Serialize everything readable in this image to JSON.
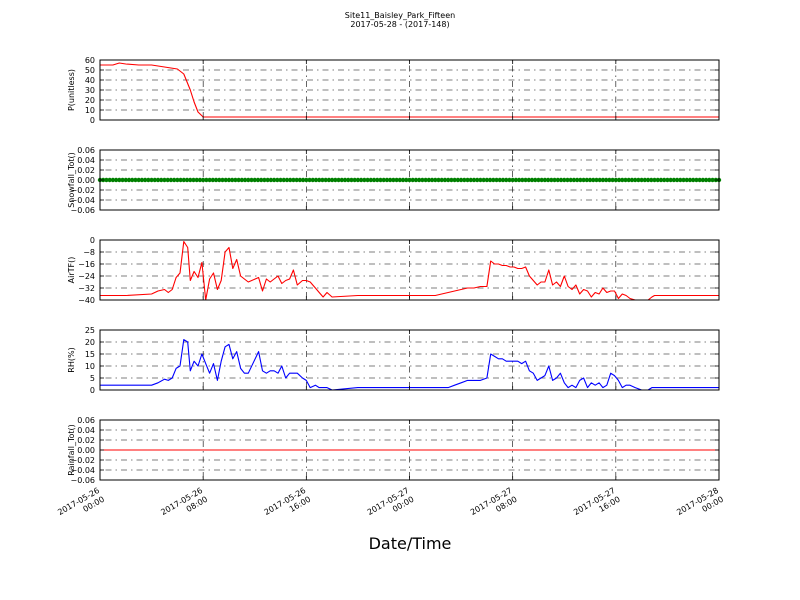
{
  "figure": {
    "title": "Site11_Baisley_Park_Fifteen",
    "subtitle": "2017-05-28 - (2017-148)",
    "xlabel": "Date/Time"
  },
  "x_ticks": [
    {
      "hours": 0,
      "line1": "2017-05-26",
      "line2": "00:00"
    },
    {
      "hours": 8,
      "line1": "2017-05-26",
      "line2": "08:00"
    },
    {
      "hours": 16,
      "line1": "2017-05-26",
      "line2": "16:00"
    },
    {
      "hours": 24,
      "line1": "2017-05-27",
      "line2": "00:00"
    },
    {
      "hours": 32,
      "line1": "2017-05-27",
      "line2": "08:00"
    },
    {
      "hours": 40,
      "line1": "2017-05-27",
      "line2": "16:00"
    },
    {
      "hours": 48,
      "line1": "2017-05-28",
      "line2": "00:00"
    }
  ],
  "colors": {
    "P": "#ff0000",
    "Snowfall": "#008000",
    "AirTF": "#ff0000",
    "RH": "#0000ff",
    "Rainfall": "#ff0000"
  },
  "chart_data": [
    {
      "type": "line",
      "ylabel": "P(unitless)",
      "ylim": [
        0,
        60
      ],
      "yticks": [
        0,
        10,
        20,
        30,
        40,
        50,
        60
      ],
      "xlim_hours": [
        0,
        48
      ],
      "grid": true,
      "x": [
        0,
        1,
        1.5,
        2,
        3,
        4,
        5,
        6,
        6.5,
        7,
        7.3,
        7.6,
        8,
        9,
        12,
        16,
        20,
        24,
        28,
        32,
        36,
        40,
        44,
        48
      ],
      "series": [
        {
          "values": [
            55,
            55,
            57,
            56,
            55,
            55,
            53,
            51,
            46,
            30,
            18,
            8,
            3,
            3,
            3,
            3,
            3,
            3,
            3,
            3,
            3,
            3,
            3,
            3
          ]
        }
      ]
    },
    {
      "type": "scatter",
      "ylabel": "Snowfall_Tot()",
      "ylim": [
        -0.06,
        0.06
      ],
      "yticks": [
        -0.06,
        -0.04,
        -0.02,
        0.0,
        0.02,
        0.04,
        0.06
      ],
      "xlim_hours": [
        0,
        48
      ],
      "grid": true,
      "x_start_hours": 0,
      "x_step_hours": 0.25,
      "series": [
        {
          "constant_value": 0,
          "count": 193
        }
      ]
    },
    {
      "type": "line",
      "ylabel": "AirTF()",
      "ylim": [
        -40,
        0
      ],
      "yticks": [
        -40,
        -32,
        -24,
        -16,
        -8,
        0
      ],
      "xlim_hours": [
        0,
        48
      ],
      "grid": true,
      "x": [
        0,
        2,
        4,
        4.5,
        5,
        5.3,
        5.6,
        5.9,
        6.2,
        6.5,
        6.8,
        7,
        7.3,
        7.6,
        7.9,
        8.2,
        8.5,
        8.8,
        9.1,
        9.4,
        9.7,
        10,
        10.3,
        10.6,
        10.9,
        11.2,
        11.5,
        12.3,
        12.6,
        12.9,
        13.2,
        13.5,
        13.8,
        14.1,
        14.4,
        14.7,
        15,
        15.3,
        15.7,
        16,
        16.3,
        16.7,
        17,
        17.3,
        17.6,
        18,
        20,
        22,
        24,
        26,
        26.5,
        27,
        27.5,
        28,
        28.5,
        29,
        29.5,
        30,
        30.3,
        30.6,
        30.9,
        31.2,
        31.5,
        31.8,
        32.1,
        32.4,
        32.7,
        33,
        33.3,
        33.6,
        33.9,
        34.2,
        34.5,
        34.8,
        35.1,
        35.4,
        35.7,
        36,
        36.3,
        36.6,
        36.9,
        37.2,
        37.5,
        37.8,
        38.1,
        38.4,
        38.7,
        39,
        39.3,
        39.6,
        39.9,
        40.2,
        40.5,
        40.8,
        41.1,
        41.5,
        42,
        42.5,
        42.8,
        43,
        45,
        48
      ],
      "series": [
        {
          "values": [
            -37,
            -37,
            -36,
            -34,
            -33,
            -35,
            -33,
            -25,
            -22,
            -1,
            -5,
            -27,
            -21,
            -25,
            -15,
            -40,
            -26,
            -22,
            -33,
            -27,
            -8,
            -5,
            -19,
            -13,
            -24,
            -26,
            -28,
            -25,
            -34,
            -26,
            -28,
            -26,
            -24,
            -29,
            -27,
            -26,
            -20,
            -30,
            -27,
            -27,
            -28,
            -32,
            -35,
            -38,
            -35,
            -38,
            -37,
            -37,
            -37,
            -37,
            -36,
            -35,
            -34,
            -33,
            -32,
            -32,
            -31,
            -31,
            -14,
            -16,
            -16,
            -17,
            -17,
            -18,
            -18,
            -19,
            -19,
            -18,
            -24,
            -27,
            -30,
            -28,
            -28,
            -20,
            -30,
            -28,
            -31,
            -24,
            -31,
            -33,
            -30,
            -36,
            -33,
            -34,
            -38,
            -35,
            -36,
            -32,
            -35,
            -34,
            -34,
            -39,
            -36,
            -37,
            -39,
            -40,
            -40,
            -40,
            -38,
            -37,
            -37,
            -37
          ]
        }
      ]
    },
    {
      "type": "line",
      "ylabel": "RH(%)",
      "ylim": [
        0,
        25
      ],
      "yticks": [
        0,
        5,
        10,
        15,
        20,
        25
      ],
      "xlim_hours": [
        0,
        48
      ],
      "grid": true,
      "x": [
        0,
        2,
        4,
        4.5,
        5,
        5.3,
        5.6,
        5.9,
        6.2,
        6.5,
        6.8,
        7,
        7.3,
        7.6,
        7.9,
        8.2,
        8.5,
        8.8,
        9.1,
        9.4,
        9.7,
        10,
        10.3,
        10.6,
        10.9,
        11.2,
        11.5,
        12.3,
        12.6,
        12.9,
        13.2,
        13.5,
        13.8,
        14.1,
        14.4,
        14.7,
        15,
        15.3,
        15.7,
        16,
        16.3,
        16.7,
        17,
        17.3,
        17.6,
        18,
        20,
        22,
        24,
        26,
        26.5,
        27,
        27.5,
        28,
        28.5,
        29,
        29.5,
        30,
        30.3,
        30.6,
        30.9,
        31.2,
        31.5,
        31.8,
        32.1,
        32.4,
        32.7,
        33,
        33.3,
        33.6,
        33.9,
        34.2,
        34.5,
        34.8,
        35.1,
        35.4,
        35.7,
        36,
        36.3,
        36.6,
        36.9,
        37.2,
        37.5,
        37.8,
        38.1,
        38.4,
        38.7,
        39,
        39.3,
        39.6,
        39.9,
        40.2,
        40.5,
        40.8,
        41.1,
        41.5,
        42,
        42.5,
        42.8,
        43,
        45,
        48
      ],
      "series": [
        {
          "values": [
            2,
            2,
            2,
            3,
            4.5,
            4,
            5,
            9,
            10,
            21,
            20,
            8,
            12,
            10,
            15,
            11,
            7,
            11,
            4,
            12,
            18,
            19,
            13,
            16,
            9,
            7,
            7,
            16,
            8,
            7,
            8,
            8,
            7,
            10,
            5,
            7,
            7,
            7,
            5,
            4,
            1,
            2,
            1,
            1,
            1,
            0,
            1,
            1,
            1,
            1,
            1,
            1,
            2,
            3,
            4,
            4,
            4,
            5,
            15,
            14,
            13,
            13,
            12,
            12,
            12,
            12,
            11,
            12,
            8,
            7,
            4,
            5,
            6,
            10,
            4,
            5,
            7,
            3,
            1,
            2,
            1,
            4,
            5,
            1,
            3,
            2,
            3,
            1,
            2,
            7,
            6,
            4,
            1,
            2,
            2,
            1,
            0,
            0,
            1,
            1,
            1,
            1
          ]
        }
      ]
    },
    {
      "type": "line",
      "ylabel": "Rainfall_Tot()",
      "ylim": [
        -0.06,
        0.06
      ],
      "yticks": [
        -0.06,
        -0.04,
        -0.02,
        0.0,
        0.02,
        0.04,
        0.06
      ],
      "xlim_hours": [
        0,
        48
      ],
      "grid": true,
      "x": [
        0,
        48
      ],
      "series": [
        {
          "values": [
            0,
            0
          ]
        }
      ]
    }
  ]
}
